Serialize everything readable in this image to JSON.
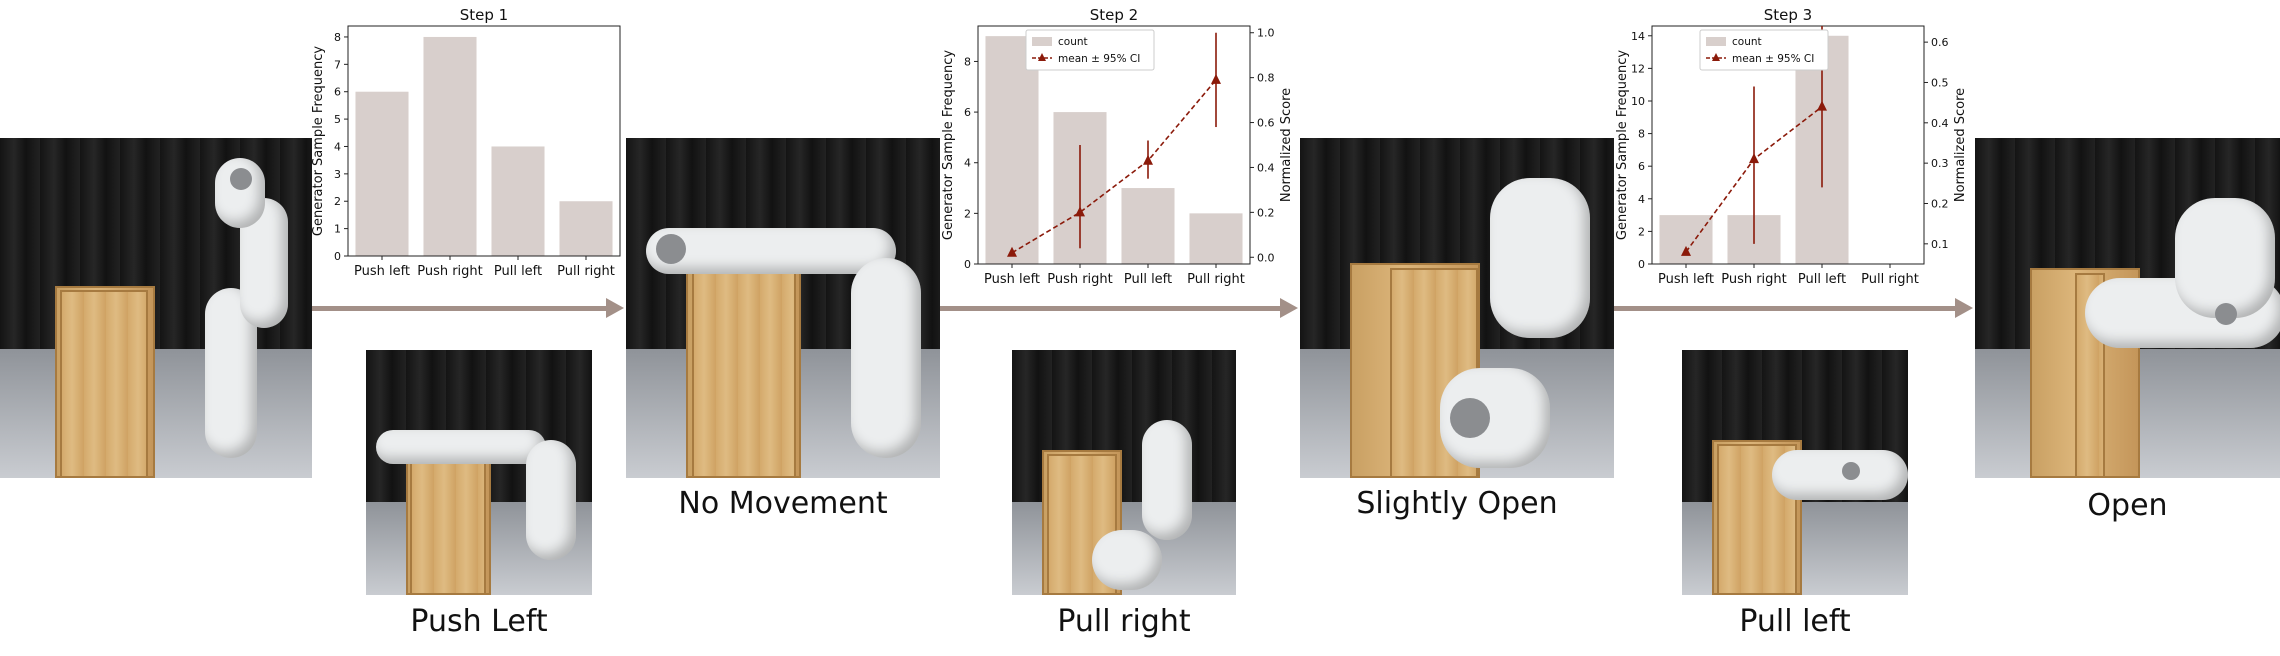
{
  "states": [
    {
      "caption": ""
    },
    {
      "caption": "No Movement"
    },
    {
      "caption": "Slightly Open"
    },
    {
      "caption": "Open"
    }
  ],
  "actions": [
    {
      "caption": "Push Left"
    },
    {
      "caption": "Pull right"
    },
    {
      "caption": "Pull left"
    }
  ],
  "colors": {
    "bar": "#d8cfcc",
    "line": "#8b1a0a",
    "arrow": "#a39088"
  },
  "chart_data": [
    {
      "type": "bar",
      "title": "Step 1",
      "categories": [
        "Push left",
        "Push right",
        "Pull left",
        "Pull right"
      ],
      "values": [
        6,
        8,
        4,
        2
      ],
      "xlabel": "",
      "ylabel": "Generator Sample Frequency",
      "ylim": [
        0,
        8.4
      ],
      "yticks": [
        0,
        1,
        2,
        3,
        4,
        5,
        6,
        7,
        8
      ],
      "grid": false
    },
    {
      "type": "bar",
      "title": "Step 2",
      "categories": [
        "Push left",
        "Push right",
        "Pull left",
        "Pull right"
      ],
      "values": [
        9,
        6,
        3,
        2
      ],
      "xlabel": "",
      "ylabel": "Generator Sample Frequency",
      "ylim": [
        0,
        9.4
      ],
      "yticks": [
        0,
        2,
        4,
        6,
        8
      ],
      "y2label": "Normalized Score",
      "y2lim": [
        -0.03,
        1.03
      ],
      "y2ticks": [
        "0.0",
        "0.2",
        "0.4",
        "0.6",
        "0.8",
        "1.0"
      ],
      "legend": [
        "count",
        "mean ± 95% CI"
      ],
      "legend_position": "top-left",
      "line": {
        "name": "mean ± 95% CI",
        "x": [
          "Push left",
          "Push right",
          "Pull left",
          "Pull right"
        ],
        "mean": [
          0.02,
          0.2,
          0.43,
          0.79
        ],
        "ci_low": [
          0.02,
          0.04,
          0.35,
          0.58
        ],
        "ci_high": [
          0.02,
          0.5,
          0.52,
          1.0
        ]
      },
      "grid": false
    },
    {
      "type": "bar",
      "title": "Step 3",
      "categories": [
        "Push left",
        "Push right",
        "Pull left",
        "Pull right"
      ],
      "values": [
        3,
        3,
        14,
        0
      ],
      "xlabel": "",
      "ylabel": "Generator Sample Frequency",
      "ylim": [
        0,
        14.6
      ],
      "yticks": [
        0,
        2,
        4,
        6,
        8,
        10,
        12,
        14
      ],
      "y2label": "Normalized Score",
      "y2lim": [
        0.05,
        0.64
      ],
      "y2ticks": [
        "0.1",
        "0.2",
        "0.3",
        "0.4",
        "0.5",
        "0.6"
      ],
      "legend": [
        "count",
        "mean ± 95% CI"
      ],
      "legend_position": "top-left",
      "line": {
        "name": "mean ± 95% CI",
        "x": [
          "Push left",
          "Push right",
          "Pull left"
        ],
        "mean": [
          0.08,
          0.31,
          0.44
        ],
        "ci_low": [
          0.08,
          0.1,
          0.24
        ],
        "ci_high": [
          0.08,
          0.49,
          0.64
        ]
      },
      "grid": false
    }
  ]
}
